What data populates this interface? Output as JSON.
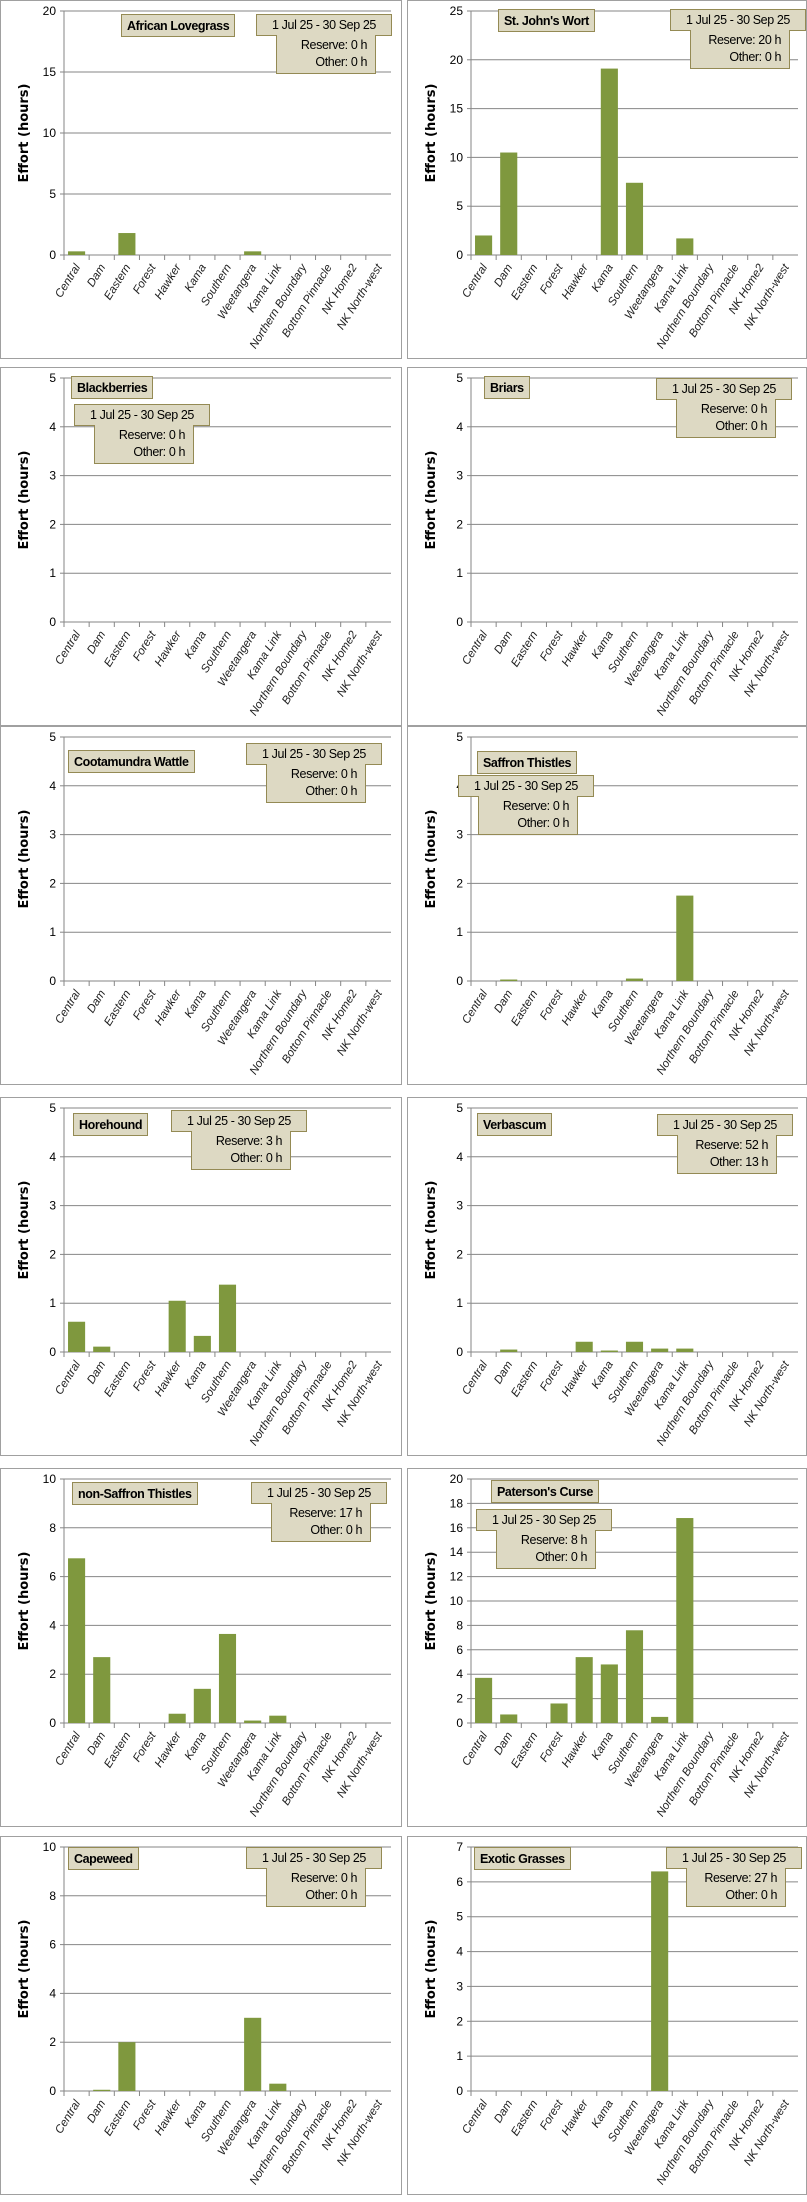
{
  "chart_data": [
    {
      "type": "bar",
      "title": "African Lovegrass",
      "date_range": "1 Jul 25  -  30 Sep 25",
      "reserve": "Reserve: 0 h",
      "other": "Other: 0 h",
      "ylabel": "Effort  (hours)",
      "ylim": [
        0,
        20
      ],
      "ystep": 5,
      "values": [
        0.3,
        0,
        1.8,
        0,
        0,
        0,
        0,
        0.3,
        0,
        0,
        0,
        0,
        0
      ]
    },
    {
      "type": "bar",
      "title": "St. John's Wort",
      "date_range": "1 Jul 25  -  30 Sep 25",
      "reserve": "Reserve: 20 h",
      "other": "Other: 0 h",
      "ylabel": "Effort  (hours)",
      "ylim": [
        0,
        25
      ],
      "ystep": 5,
      "values": [
        2,
        10.5,
        0,
        0,
        0,
        19.1,
        7.4,
        0,
        1.7,
        0,
        0,
        0,
        0
      ]
    },
    {
      "type": "bar",
      "title": "Blackberries",
      "date_range": "1 Jul 25  -  30 Sep 25",
      "reserve": "Reserve: 0 h",
      "other": "Other: 0 h",
      "ylabel": "Effort  (hours)",
      "ylim": [
        0,
        5
      ],
      "ystep": 1,
      "values": [
        0,
        0,
        0,
        0,
        0,
        0,
        0,
        0,
        0,
        0,
        0,
        0,
        0
      ]
    },
    {
      "type": "bar",
      "title": "Briars",
      "date_range": "1 Jul 25  -  30 Sep 25",
      "reserve": "Reserve: 0 h",
      "other": "Other: 0 h",
      "ylabel": "Effort  (hours)",
      "ylim": [
        0,
        5
      ],
      "ystep": 1,
      "values": [
        0,
        0,
        0,
        0,
        0,
        0,
        0,
        0,
        0,
        0,
        0,
        0,
        0
      ]
    },
    {
      "type": "bar",
      "title": "Cootamundra Wattle",
      "date_range": "1 Jul 25  -  30 Sep 25",
      "reserve": "Reserve: 0 h",
      "other": "Other: 0 h",
      "ylabel": "Effort  (hours)",
      "ylim": [
        0,
        5
      ],
      "ystep": 1,
      "values": [
        0,
        0,
        0,
        0,
        0,
        0,
        0,
        0,
        0,
        0,
        0,
        0,
        0
      ]
    },
    {
      "type": "bar",
      "title": "Saffron Thistles",
      "date_range": "1 Jul 25  -  30 Sep 25",
      "reserve": "Reserve: 0 h",
      "other": "Other: 0 h",
      "ylabel": "Effort  (hours)",
      "ylim": [
        0,
        5
      ],
      "ystep": 1,
      "values": [
        0,
        0.03,
        0,
        0,
        0,
        0,
        0.05,
        0,
        1.75,
        0,
        0,
        0,
        0
      ]
    },
    {
      "type": "bar",
      "title": "Horehound",
      "date_range": "1 Jul 25  -  30 Sep 25",
      "reserve": "Reserve: 3 h",
      "other": "Other: 0 h",
      "ylabel": "Effort  (hours)",
      "ylim": [
        0,
        5
      ],
      "ystep": 1,
      "values": [
        0.62,
        0.11,
        0,
        0,
        1.05,
        0.33,
        1.38,
        0,
        0,
        0,
        0,
        0,
        0
      ]
    },
    {
      "type": "bar",
      "title": "Verbascum",
      "date_range": "1 Jul 25  -  30 Sep 25",
      "reserve": "Reserve: 52 h",
      "other": "Other: 13 h",
      "ylabel": "Effort  (hours)",
      "ylim": [
        0,
        5
      ],
      "ystep": 1,
      "values": [
        0,
        0.05,
        0,
        0,
        0.21,
        0.03,
        0.21,
        0.07,
        0.07,
        0,
        0,
        0,
        0
      ]
    },
    {
      "type": "bar",
      "title": "non-Saffron Thistles",
      "date_range": "1 Jul 25  -  30 Sep 25",
      "reserve": "Reserve: 17 h",
      "other": "Other: 0 h",
      "ylabel": "Effort  (hours)",
      "ylim": [
        0,
        10
      ],
      "ystep": 2,
      "values": [
        6.75,
        2.7,
        0,
        0,
        0.38,
        1.4,
        3.65,
        0.1,
        0.3,
        0,
        0,
        0,
        0
      ]
    },
    {
      "type": "bar",
      "title": "Paterson's Curse",
      "date_range": "1 Jul 25  -  30 Sep 25",
      "reserve": "Reserve: 8 h",
      "other": "Other: 0 h",
      "ylabel": "Effort  (hours)",
      "ylim": [
        0,
        20
      ],
      "ystep": 2,
      "values": [
        3.7,
        0.7,
        0,
        1.6,
        5.4,
        4.8,
        7.6,
        0.5,
        16.8,
        0,
        0,
        0,
        0
      ]
    },
    {
      "type": "bar",
      "title": "Capeweed",
      "date_range": "1 Jul 25  -  30 Sep 25",
      "reserve": "Reserve: 0 h",
      "other": "Other: 0 h",
      "ylabel": "Effort  (hours)",
      "ylim": [
        0,
        10
      ],
      "ystep": 2,
      "values": [
        0,
        0.05,
        2.0,
        0,
        0,
        0,
        0,
        3.0,
        0.3,
        0,
        0,
        0,
        0
      ]
    },
    {
      "type": "bar",
      "title": "Exotic Grasses",
      "date_range": "1 Jul 25  -  30 Sep 25",
      "reserve": "Reserve: 27 h",
      "other": "Other: 0 h",
      "ylabel": "Effort  (hours)",
      "ylim": [
        0,
        7
      ],
      "ystep": 1,
      "values": [
        0,
        0,
        0,
        0,
        0,
        0,
        0,
        6.3,
        0,
        0,
        0,
        0,
        0
      ]
    }
  ],
  "categories": [
    "Central",
    "Dam",
    "Eastern",
    "Forest",
    "Hawker",
    "Kama",
    "Southern",
    "Weetangera",
    "Kama Link",
    "Northern Boundary",
    "Bottom Pinnacle",
    "NK Home2",
    "NK North-west"
  ],
  "colors": {
    "bar": "#7f983e",
    "box_fill": "#ddd9c3",
    "box_border": "#948a54",
    "grid": "#868686"
  },
  "grid": true,
  "legend": "none"
}
